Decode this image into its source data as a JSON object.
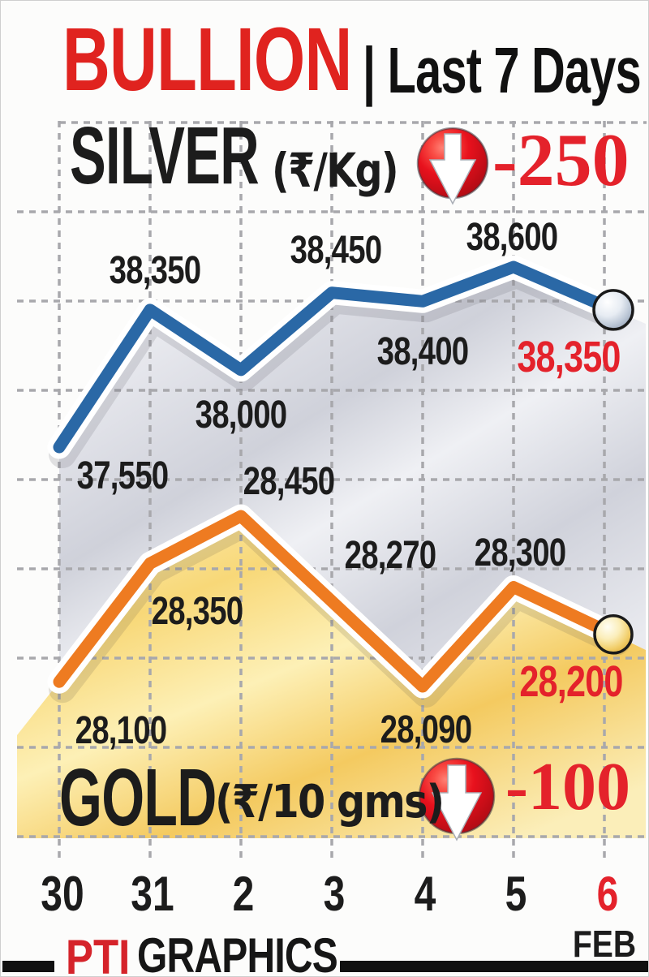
{
  "title": {
    "brand": "BULLION",
    "rest": "| Last 7 Days"
  },
  "silver_header": {
    "label": "SILVER",
    "unit": "(₹/Kg)",
    "change": "-250"
  },
  "gold_header": {
    "label": "GOLD",
    "unit": "(₹/10 gms)",
    "change": "-100"
  },
  "x_axis": {
    "labels": [
      "30",
      "31",
      "2",
      "3",
      "4",
      "5",
      "6"
    ],
    "highlighted": "6",
    "month": "FEB"
  },
  "footer": {
    "logo": "PTI",
    "text": "GRAPHICS"
  },
  "colors": {
    "red": "#e4222b",
    "brand_red": "#e0231f",
    "silver_line": "#2a68a6",
    "gold_line": "#ee7b21",
    "grid": "#a8a8ac",
    "black": "#1c1c1c"
  },
  "icons": {
    "silver_change": "down-arrow-ball",
    "gold_change": "down-arrow-ball"
  },
  "chart_data": {
    "type": "line",
    "title": "BULLION | Last 7 Days",
    "categories": [
      "30",
      "31",
      "2",
      "3",
      "4",
      "5",
      "6"
    ],
    "month": "FEB",
    "grid": true,
    "legend_position": "none",
    "series": [
      {
        "name": "SILVER",
        "unit": "₹/Kg",
        "color": "#2a68a6",
        "change": -250,
        "values": [
          37550,
          38350,
          38000,
          38450,
          38400,
          38600,
          38350
        ],
        "labels": [
          "37,550",
          "38,350",
          "38,000",
          "38,450",
          "38,400",
          "38,600",
          "38,350"
        ]
      },
      {
        "name": "GOLD",
        "unit": "₹/10 gms",
        "color": "#ee7b21",
        "change": -100,
        "values": [
          28100,
          28350,
          28450,
          28270,
          28090,
          28300,
          28200
        ],
        "labels": [
          "28,100",
          "28,350",
          "28,450",
          "28,270",
          "28,090",
          "28,300",
          "28,200"
        ]
      }
    ]
  }
}
